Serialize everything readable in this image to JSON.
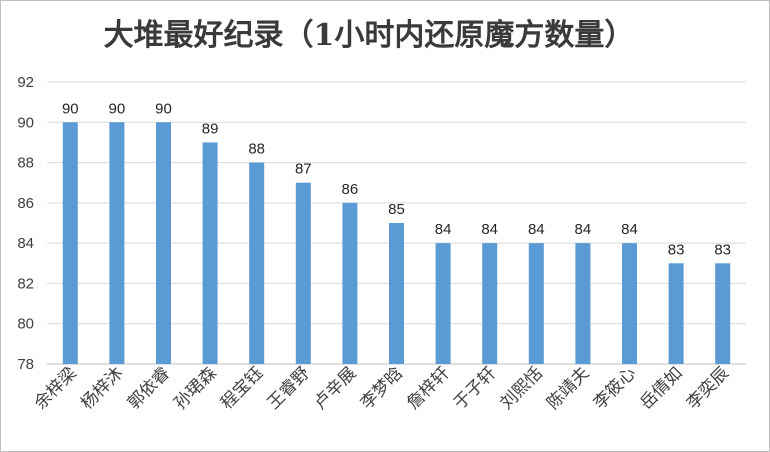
{
  "chart_data": {
    "type": "bar",
    "title": "大堆最好纪录（1小时内还原魔方数量）",
    "categories": [
      "余梓梁",
      "杨梓沐",
      "郭依睿",
      "孙珺森",
      "程宝钰",
      "王睿野",
      "卢辛展",
      "李梦晗",
      "詹梓轩",
      "于子轩",
      "刘熙恬",
      "陈靖夫",
      "李筱心",
      "岳倩如",
      "李奕辰"
    ],
    "values": [
      90,
      90,
      90,
      89,
      88,
      87,
      86,
      85,
      84,
      84,
      84,
      84,
      84,
      83,
      83
    ],
    "yticks": [
      "78",
      "80",
      "82",
      "84",
      "86",
      "88",
      "90",
      "92"
    ],
    "ylim": [
      78,
      92
    ],
    "grid": true,
    "bar_color": "#5b9bd5",
    "legend": "none"
  }
}
